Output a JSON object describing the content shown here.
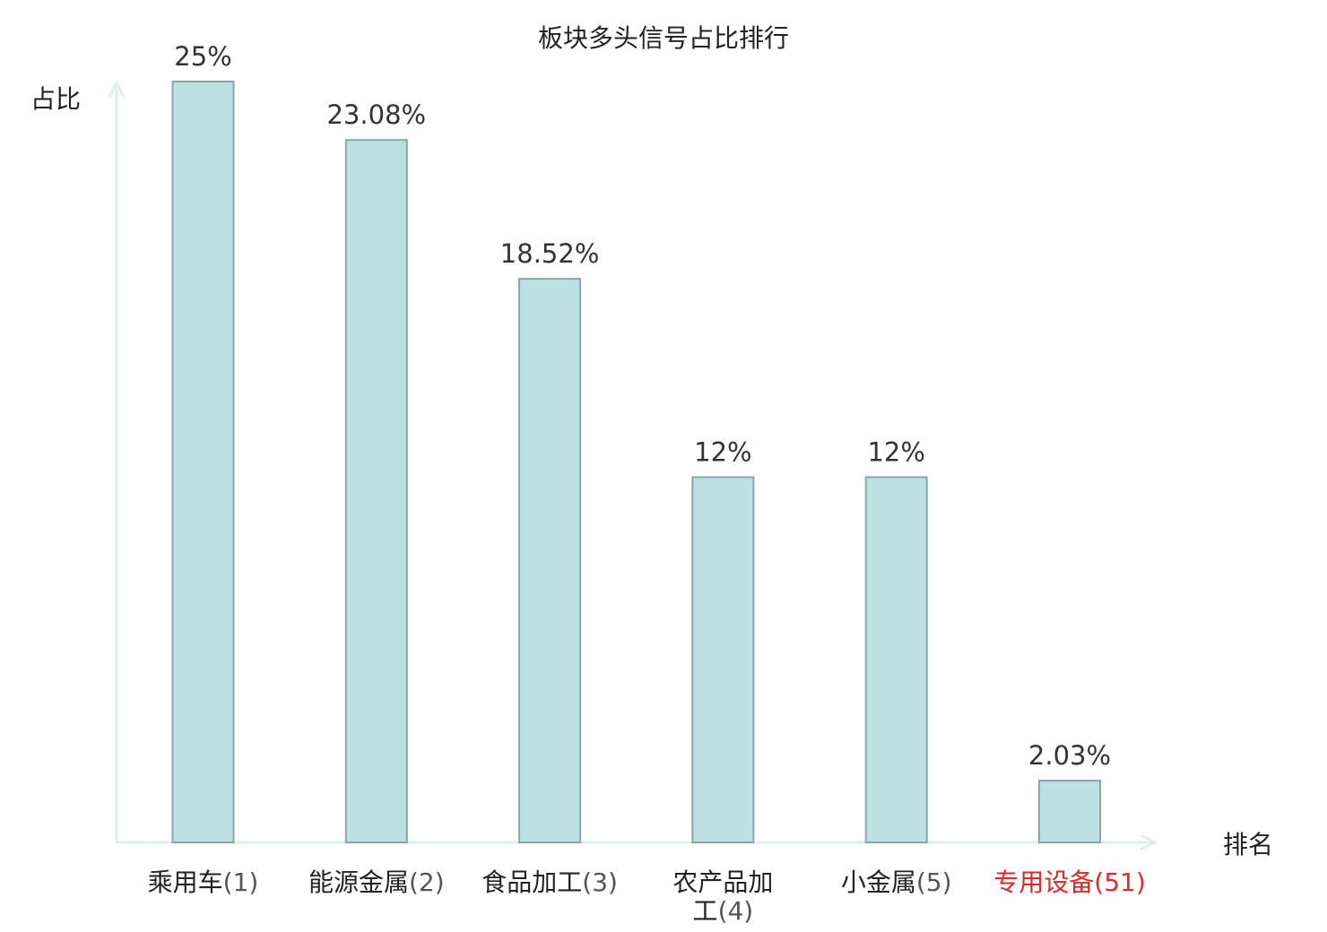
{
  "chart_data": {
    "type": "bar",
    "title": "板块多头信号占比排行",
    "ylabel": "占比",
    "xlabel": "排名",
    "ylim": [
      0,
      25
    ],
    "grid": false,
    "legend": "none",
    "categories": [
      {
        "name_lines": [
          "乘用车"
        ],
        "rank": "(1)",
        "highlight": false
      },
      {
        "name_lines": [
          "能源金属"
        ],
        "rank": "(2)",
        "highlight": false
      },
      {
        "name_lines": [
          "食品加工"
        ],
        "rank": "(3)",
        "highlight": false
      },
      {
        "name_lines": [
          "农产品加",
          "工"
        ],
        "rank": "(4)",
        "highlight": false
      },
      {
        "name_lines": [
          "小金属"
        ],
        "rank": "(5)",
        "highlight": false
      },
      {
        "name_lines": [
          "专用设备"
        ],
        "rank": "(51)",
        "highlight": true
      }
    ],
    "values": [
      25,
      23.08,
      18.52,
      12,
      12,
      2.03
    ],
    "value_labels": [
      "25%",
      "23.08%",
      "18.52%",
      "12%",
      "12%",
      "2.03%"
    ]
  },
  "colors": {
    "bar_fill": "#bde0e3",
    "bar_stroke": "#8aa6a9",
    "axis": "#dcefec",
    "text": "#222222",
    "value_text": "#333333",
    "rank_text": "#555555",
    "highlight": "#e8262a"
  }
}
